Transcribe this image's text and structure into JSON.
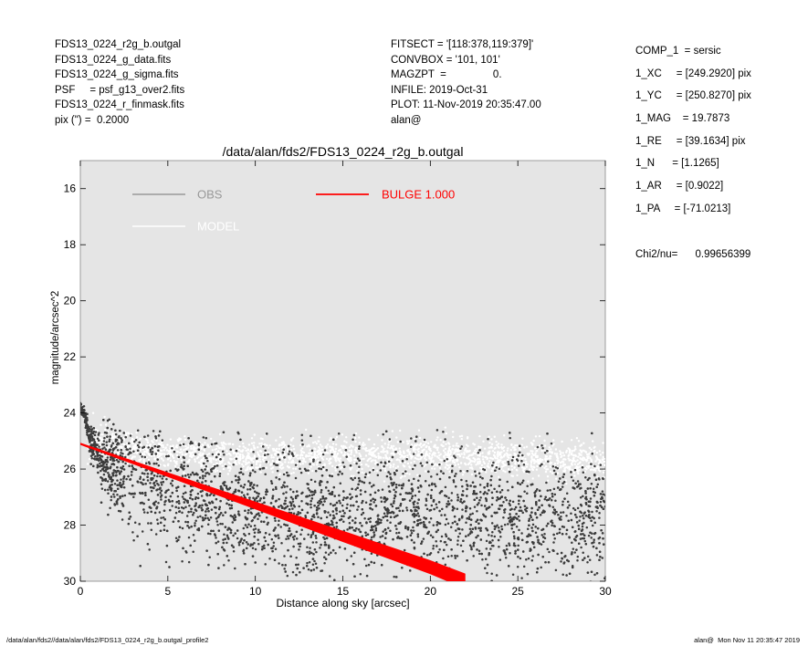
{
  "header": {
    "left_lines": [
      "FDS13_0224_r2g_b.outgal",
      "FDS13_0224_g_data.fits",
      "FDS13_0224_g_sigma.fits",
      "PSF     = psf_g13_over2.fits",
      "FDS13_0224_r_finmask.fits",
      "pix (\") =  0.2000"
    ],
    "mid_lines": [
      "FITSECT = '[118:378,119:379]'",
      "CONVBOX = '101, 101'",
      "MAGZPT  =                0.",
      "INFILE: 2019-Oct-31",
      "PLOT: 11-Nov-2019 20:35:47.00",
      "alan@"
    ],
    "right_lines": [
      "COMP_1  = sersic",
      "1_XC     = [249.2920] pix",
      "1_YC     = [250.8270] pix",
      "1_MAG    = 19.7873",
      "1_RE     = [39.1634] pix",
      "1_N      = [1.1265]",
      "1_AR     = [0.9022]",
      "1_PA     = [-71.0213]"
    ],
    "chi2": "Chi2/nu=      0.99656399"
  },
  "footer": {
    "left": "/data/alan/fds2//data/alan/fds2/FDS13_0224_r2g_b.outgal_profile2",
    "right": "alan@  Mon Nov 11 20:35:47 2019"
  },
  "chart_data": {
    "type": "scatter",
    "title": "/data/alan/fds2/FDS13_0224_r2g_b.outgal",
    "xlabel": "Distance along sky [arcsec]",
    "ylabel": "magnitude/arcsec^2",
    "xlim": [
      0,
      30
    ],
    "ylim": [
      30,
      15
    ],
    "y_inverted": true,
    "xticks": [
      0,
      5,
      10,
      15,
      20,
      25,
      30
    ],
    "yticks": [
      16,
      18,
      20,
      22,
      24,
      26,
      28,
      30
    ],
    "grid": false,
    "background_color": "#e5e5e5",
    "legend": [
      {
        "label": "OBS",
        "color": "#999999"
      },
      {
        "label": "MODEL",
        "color": "#ffffff"
      },
      {
        "label": "BULGE  1.000",
        "color": "#ff0000"
      }
    ],
    "series": [
      {
        "name": "OBS",
        "color": "#3c3c3c",
        "style": "points",
        "x": [
          0.1,
          0.2,
          0.3,
          0.4,
          0.5,
          0.6,
          0.8,
          1.0,
          1.2,
          1.5,
          2.0,
          2.5,
          3.0,
          4.0,
          5.0,
          6.0,
          7.0,
          8.0,
          10.0,
          12.0,
          14.0,
          16.0,
          18.0,
          20.0,
          22.0,
          24.0,
          26.0,
          28.0,
          30.0
        ],
        "y": [
          23.9,
          24.0,
          24.2,
          24.5,
          24.8,
          25.0,
          25.2,
          25.4,
          25.6,
          25.7,
          25.9,
          26.1,
          26.3,
          26.6,
          26.8,
          27.0,
          27.1,
          27.3,
          27.4,
          27.5,
          27.5,
          27.6,
          27.6,
          27.6,
          27.6,
          27.7,
          27.7,
          27.8,
          27.8
        ],
        "scatter_sigma": [
          0.1,
          0.1,
          0.1,
          0.2,
          0.2,
          0.3,
          0.3,
          0.4,
          0.5,
          0.6,
          0.8,
          0.9,
          1.0,
          1.1,
          1.1,
          1.1,
          1.1,
          1.1,
          1.1,
          1.1,
          1.1,
          1.1,
          1.1,
          1.1,
          1.1,
          1.1,
          1.1,
          1.1,
          1.1
        ]
      },
      {
        "name": "MODEL",
        "color": "#ffffff",
        "style": "points",
        "x": [
          0.5,
          1.0,
          2.0,
          3.0,
          5.0,
          8.0,
          10.0,
          15.0,
          20.0,
          25.0,
          30.0
        ],
        "y": [
          25.0,
          25.1,
          25.2,
          25.3,
          25.4,
          25.5,
          25.5,
          25.5,
          25.5,
          25.6,
          25.7
        ],
        "scatter_sigma": [
          0.3,
          0.3,
          0.3,
          0.3,
          0.3,
          0.3,
          0.3,
          0.3,
          0.3,
          0.3,
          0.3
        ]
      },
      {
        "name": "BULGE  1.000",
        "color": "#ff0000",
        "style": "band",
        "x": [
          0,
          5,
          10,
          15,
          20,
          22
        ],
        "y": [
          25.1,
          26.2,
          27.3,
          28.4,
          29.5,
          30.0
        ],
        "band_halfwidth": [
          0.04,
          0.08,
          0.14,
          0.2,
          0.25,
          0.27
        ]
      }
    ]
  }
}
